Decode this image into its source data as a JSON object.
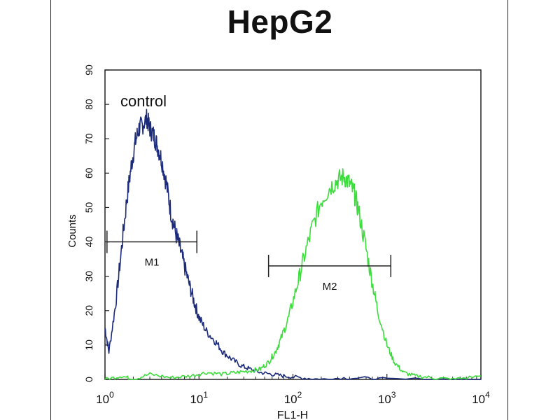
{
  "chart_data": {
    "type": "line",
    "title": "HepG2",
    "xlabel": "FL1-H",
    "ylabel": "Counts",
    "xscale": "log",
    "xlim": [
      1,
      10000
    ],
    "ylim": [
      0,
      90
    ],
    "xticks": [
      {
        "base": "10",
        "exp": "0",
        "value": 1
      },
      {
        "base": "10",
        "exp": "1",
        "value": 10
      },
      {
        "base": "10",
        "exp": "2",
        "value": 100
      },
      {
        "base": "10",
        "exp": "3",
        "value": 1000
      },
      {
        "base": "10",
        "exp": "4",
        "value": 10000
      }
    ],
    "yticks": [
      "0",
      "10",
      "20",
      "30",
      "40",
      "50",
      "60",
      "70",
      "80",
      "90"
    ],
    "annotations": {
      "control": "control"
    },
    "series": [
      {
        "name": "control",
        "color": "#1b2a7a",
        "x": [
          1.0,
          1.1,
          1.3,
          1.5,
          1.7,
          1.9,
          2.1,
          2.3,
          2.5,
          2.8,
          3.0,
          3.3,
          3.6,
          4.0,
          4.5,
          5.0,
          5.6,
          6.3,
          7.0,
          8.0,
          9.0,
          10,
          12,
          15,
          18,
          22,
          28,
          35,
          45,
          60,
          80,
          120,
          200,
          400,
          1000,
          10000
        ],
        "y": [
          15,
          8,
          22,
          38,
          52,
          62,
          69,
          73,
          74,
          76,
          73,
          71,
          68,
          64,
          57,
          49,
          43,
          38,
          33,
          27,
          22,
          18,
          14,
          11,
          8,
          6,
          4,
          3,
          2,
          1.5,
          1,
          0.5,
          0,
          0.5,
          0,
          0
        ]
      },
      {
        "name": "",
        "color": "#3ddc3d",
        "x": [
          1.0,
          1.5,
          2,
          3,
          5,
          8,
          12,
          18,
          25,
          35,
          45,
          55,
          65,
          75,
          90,
          110,
          130,
          160,
          200,
          250,
          300,
          350,
          400,
          450,
          500,
          600,
          700,
          800,
          1000,
          1200,
          1500,
          2000,
          3000,
          5000,
          10000
        ],
        "y": [
          0,
          1,
          0,
          1.5,
          0.5,
          1,
          2,
          1.5,
          2,
          2.5,
          3,
          5,
          8,
          12,
          18,
          27,
          35,
          44,
          52,
          56,
          58,
          59,
          57,
          54,
          49,
          38,
          28,
          20,
          10,
          5,
          2,
          1,
          0.5,
          0,
          1
        ]
      }
    ],
    "markers": [
      {
        "label": "M1",
        "x_start": 1.05,
        "x_end": 9.5,
        "y": 40
      },
      {
        "label": "M2",
        "x_start": 55,
        "x_end": 1100,
        "y": 33
      }
    ]
  }
}
